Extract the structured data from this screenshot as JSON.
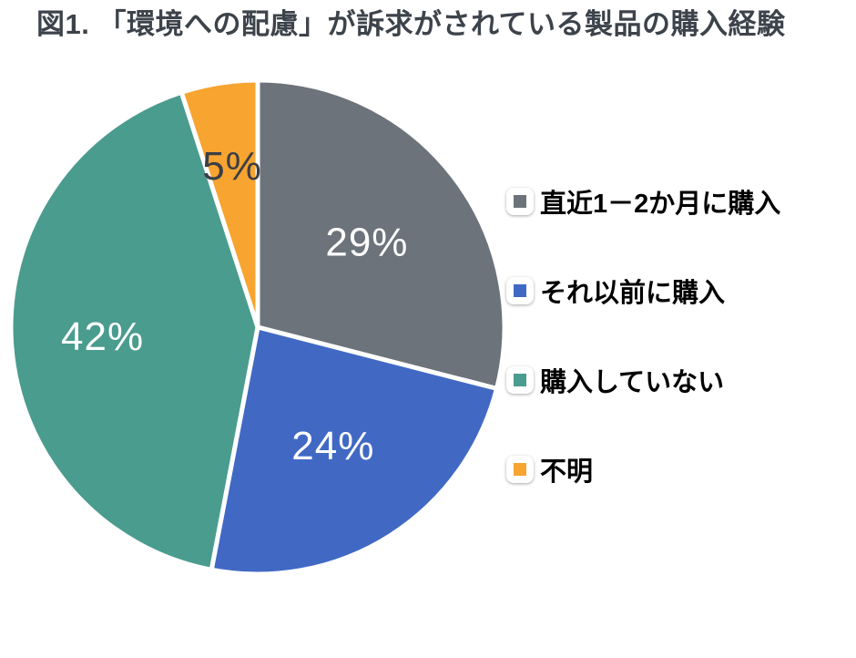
{
  "chart_data": {
    "type": "pie",
    "title": "図1. 「環境への配慮」が訴求がされている製品の購入経験",
    "slices": [
      {
        "label": "直近1－2か月に購入",
        "value": 29,
        "data_label": "29%",
        "color": "#6C737A",
        "label_color": "#FFFFFF"
      },
      {
        "label": "それ以前に購入",
        "value": 24,
        "data_label": "24%",
        "color": "#4169C4",
        "label_color": "#FFFFFF"
      },
      {
        "label": "購入していない",
        "value": 42,
        "data_label": "42%",
        "color": "#4A9C8E",
        "label_color": "#FFFFFF"
      },
      {
        "label": "不明",
        "value": 5,
        "data_label": "5%",
        "color": "#F7A430",
        "label_color": "#3B3F45"
      }
    ],
    "start_angle_deg": 0,
    "direction": "clockwise",
    "slice_border_color": "#FFFFFF",
    "legend_position": "right",
    "label_radius_factors": [
      0.56,
      0.57,
      0.63,
      0.66
    ]
  }
}
